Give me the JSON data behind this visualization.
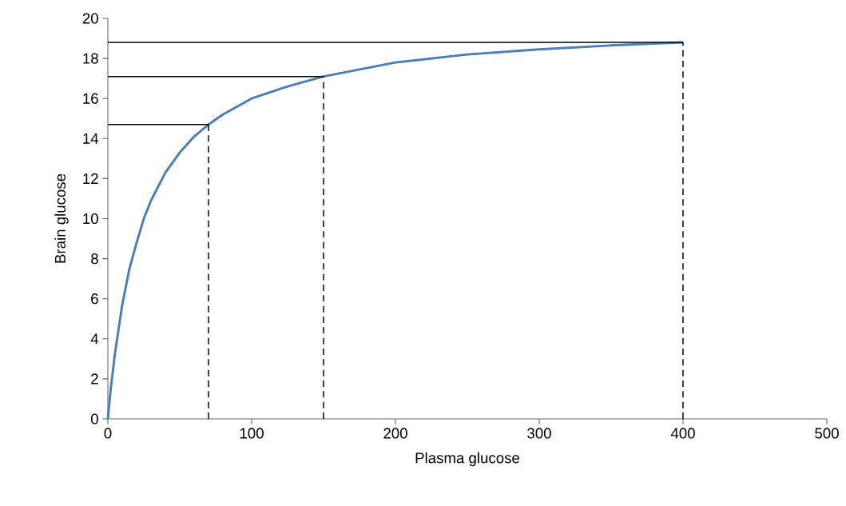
{
  "chart_data": {
    "type": "line",
    "xlabel": "Plasma glucose",
    "ylabel": "Brain glucose",
    "xlim": [
      0,
      500
    ],
    "ylim": [
      0,
      20
    ],
    "xticks": [
      0,
      100,
      200,
      300,
      400,
      500
    ],
    "yticks": [
      0,
      2,
      4,
      6,
      8,
      10,
      12,
      14,
      16,
      18,
      20
    ],
    "marker": "none",
    "line_style": "solid",
    "x": [
      0,
      2,
      5,
      10,
      15,
      20,
      25,
      30,
      40,
      50,
      60,
      70,
      80,
      100,
      125,
      150,
      200,
      250,
      300,
      350,
      400
    ],
    "series": [
      {
        "color": "#4a7ebb",
        "values": [
          0,
          1.5,
          3.3,
          5.7,
          7.5,
          8.8,
          10.0,
          10.9,
          12.3,
          13.3,
          14.1,
          14.7,
          15.2,
          16.0,
          16.6,
          17.1,
          17.8,
          18.2,
          18.45,
          18.65,
          18.8
        ]
      },
      {
        "type": "line",
        "color": "#000000",
        "x": [
          0,
          70
        ],
        "values": [
          14.7,
          14.7
        ]
      },
      {
        "type": "line",
        "color": "#000000",
        "x": [
          0,
          150
        ],
        "values": [
          17.1,
          17.1
        ]
      },
      {
        "type": "line",
        "color": "#000000",
        "x": [
          0,
          400
        ],
        "values": [
          18.8,
          18.8
        ]
      },
      {
        "type": "line",
        "color": "#000000",
        "line_style": "dashed",
        "x": [
          70,
          70
        ],
        "values": [
          0,
          14.7
        ]
      },
      {
        "type": "line",
        "color": "#000000",
        "line_style": "dashed",
        "x": [
          150,
          150
        ],
        "values": [
          0,
          17.1
        ]
      },
      {
        "type": "line",
        "color": "#000000",
        "line_style": "dashed",
        "x": [
          400,
          400
        ],
        "values": [
          0,
          18.8
        ]
      }
    ]
  }
}
